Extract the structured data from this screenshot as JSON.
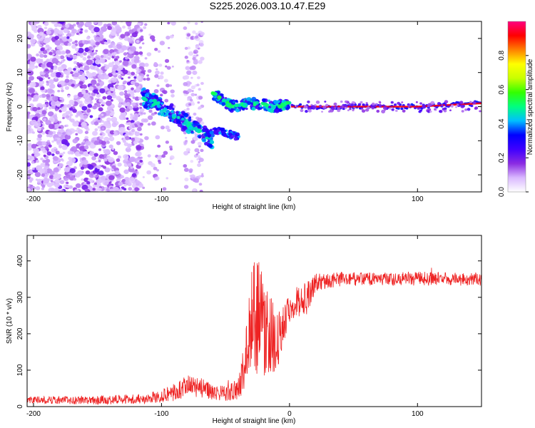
{
  "figure": {
    "title": "S225.2026.003.10.47.E29"
  },
  "chart_data": [
    {
      "type": "heatmap",
      "name": "spectrogram",
      "xlabel": "Height of straight line (km)",
      "ylabel": "Frequency (Hz)",
      "xlim": [
        -205,
        150
      ],
      "ylim": [
        -25,
        25
      ],
      "xticks": [
        -200,
        -100,
        0,
        100
      ],
      "xtick_labels": [
        "-200",
        "-100",
        "0",
        "100"
      ],
      "yticks": [
        -20,
        -10,
        0,
        10,
        20
      ],
      "ytick_labels": [
        "-20",
        "-10",
        "0",
        "10",
        "20"
      ],
      "description_of_structure": {
        "noise_region_km": [
          -205,
          -120
        ],
        "descending_branch": [
          [
            -115,
            3
          ],
          [
            -100,
            0
          ],
          [
            -80,
            -5
          ],
          [
            -60,
            -10
          ]
        ],
        "secondary_branch": [
          [
            -60,
            4
          ],
          [
            -45,
            0
          ],
          [
            -30,
            1
          ],
          [
            -10,
            0
          ],
          [
            0,
            1
          ]
        ],
        "lower_fragment": [
          [
            -65,
            -8
          ],
          [
            -55,
            -7
          ],
          [
            -40,
            -9
          ]
        ],
        "carrier_line": [
          [
            0,
            0
          ],
          [
            100,
            0
          ],
          [
            150,
            1
          ]
        ]
      },
      "colorbar": {
        "label": "Normalized spectral amplitude",
        "range": [
          0,
          1
        ],
        "ticks": [
          0.0,
          0.2,
          0.4,
          0.6,
          0.8
        ],
        "tick_labels": [
          "0.0",
          "0.2",
          "0.4",
          "0.6",
          "0.8"
        ],
        "colors": [
          "#ffffff",
          "#d9b8ff",
          "#8a2be2",
          "#3f00ff",
          "#0000ff",
          "#00bfff",
          "#00ff80",
          "#33ff00",
          "#c8ff00",
          "#ffff00",
          "#ff8000",
          "#ff0000",
          "#ff0080"
        ]
      }
    },
    {
      "type": "line",
      "name": "snr",
      "xlabel": "Height of straight line (km)",
      "ylabel": "SNR (10 * v/v)",
      "xlim": [
        -205,
        150
      ],
      "ylim": [
        0,
        470
      ],
      "xticks": [
        -200,
        -100,
        0,
        100
      ],
      "xtick_labels": [
        "-200",
        "-100",
        "0",
        "100"
      ],
      "yticks": [
        0,
        100,
        200,
        300,
        400
      ],
      "ytick_labels": [
        "0",
        "100",
        "200",
        "300",
        "400"
      ],
      "color": "#ee2222",
      "envelope": {
        "x": [
          -205,
          -150,
          -110,
          -90,
          -75,
          -65,
          -50,
          -40,
          -35,
          -30,
          -25,
          -20,
          -15,
          -10,
          -5,
          0,
          5,
          10,
          15,
          20,
          30,
          40,
          60,
          80,
          100,
          120,
          150
        ],
        "mean": [
          18,
          18,
          22,
          40,
          60,
          45,
          35,
          50,
          110,
          240,
          250,
          230,
          200,
          170,
          230,
          275,
          290,
          290,
          300,
          340,
          345,
          350,
          350,
          350,
          352,
          350,
          350
        ],
        "spread": [
          10,
          12,
          14,
          25,
          35,
          25,
          20,
          30,
          70,
          150,
          160,
          150,
          120,
          80,
          60,
          45,
          40,
          45,
          45,
          25,
          20,
          20,
          18,
          18,
          20,
          18,
          18
        ]
      }
    }
  ]
}
